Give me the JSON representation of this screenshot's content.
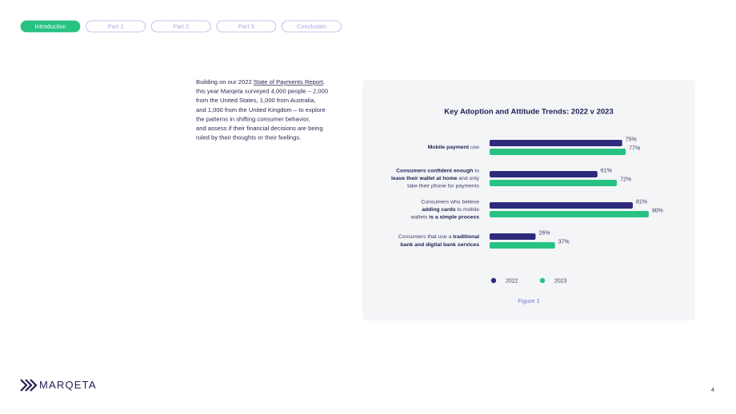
{
  "nav": [
    "Introduction",
    "Part 1",
    "Part 2",
    "Part 3",
    "Conclusion"
  ],
  "body": {
    "lead": "Building on our 2022 ",
    "link": "State of Payments Report",
    "lead_end": ",",
    "lines": [
      "this year Marqeta surveyed 4,000 people – 2,000",
      "from the United States, 1,000 from Australia,",
      "and 1,000 from the United Kingdom – to explore",
      "the patterns in shifting consumer behavior,",
      "and assess if their financial decisions are being",
      "ruled by their thoughts or their feelings."
    ]
  },
  "chart_data": {
    "type": "bar",
    "orientation": "horizontal",
    "title": "Key Adoption and Attitude Trends: 2022 v 2023",
    "categories": [
      [
        [
          {
            "text": "Mobile payment",
            "bold": true
          },
          {
            "text": " use",
            "bold": false
          }
        ]
      ],
      [
        [
          {
            "text": "Consumers confident enough",
            "bold": true
          },
          {
            "text": " to",
            "bold": false
          }
        ],
        [
          {
            "text": "leave their wallet at home",
            "bold": true
          },
          {
            "text": " and only",
            "bold": false
          }
        ],
        [
          {
            "text": "take their phone for payments",
            "bold": false
          }
        ]
      ],
      [
        [
          {
            "text": "Consumers who believe",
            "bold": false
          }
        ],
        [
          {
            "text": "adding cards",
            "bold": true
          },
          {
            "text": " to mobile",
            "bold": false
          }
        ],
        [
          {
            "text": "wallets ",
            "bold": false
          },
          {
            "text": "is a simple process",
            "bold": true
          }
        ]
      ],
      [
        [
          {
            "text": "Consumers that use a ",
            "bold": false
          },
          {
            "text": "traditional",
            "bold": true
          }
        ],
        [
          {
            "text": "bank and digital bank services",
            "bold": true
          }
        ]
      ]
    ],
    "series": [
      {
        "name": "2022",
        "color": "#2e2a7c",
        "values": [
          75,
          61,
          81,
          26
        ],
        "value_labels": [
          "75%",
          "61%",
          "81%",
          "26%"
        ]
      },
      {
        "name": "2023",
        "color": "#27c282",
        "values": [
          77,
          72,
          90,
          37
        ],
        "value_labels": [
          "77%",
          "72%",
          "90%",
          "37%"
        ]
      }
    ],
    "caption": "Figure 1"
  },
  "footer": {
    "logo": "MARQETA",
    "page": "4"
  }
}
